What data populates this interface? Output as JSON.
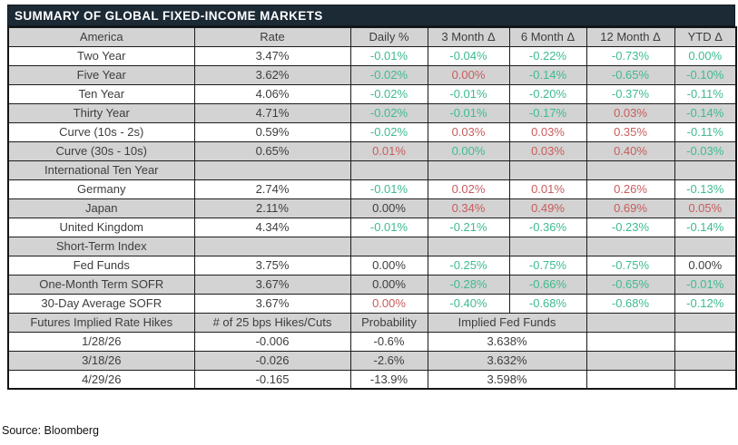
{
  "title": "SUMMARY OF GLOBAL FIXED-INCOME MARKETS",
  "source_note": "Source: Bloomberg",
  "colors": {
    "green": "#3ebc8e",
    "red": "#c95c5c",
    "dark": "#3d3d3d",
    "header_gray": "#d3d3d3",
    "title_bg": "#1c2a36",
    "title_text": "#ffffff"
  },
  "bond_table": {
    "header": {
      "label": "America",
      "cols": [
        "Rate",
        "Daily %",
        "3 Month Δ",
        "6 Month Δ",
        "12 Month Δ",
        "YTD Δ"
      ]
    },
    "rows": [
      {
        "type": "data",
        "label": "Two Year",
        "rate": "3.47%",
        "cells": [
          {
            "v": "-0.01%",
            "c": "green"
          },
          {
            "v": "-0.04%",
            "c": "green"
          },
          {
            "v": "-0.22%",
            "c": "green"
          },
          {
            "v": "-0.73%",
            "c": "green"
          },
          {
            "v": "0.00%",
            "c": "green"
          }
        ]
      },
      {
        "type": "data",
        "label": "Five Year",
        "rate": "3.62%",
        "cells": [
          {
            "v": "-0.02%",
            "c": "green"
          },
          {
            "v": "0.00%",
            "c": "red"
          },
          {
            "v": "-0.14%",
            "c": "green"
          },
          {
            "v": "-0.65%",
            "c": "green"
          },
          {
            "v": "-0.10%",
            "c": "green"
          }
        ]
      },
      {
        "type": "data",
        "label": "Ten Year",
        "rate": "4.06%",
        "cells": [
          {
            "v": "-0.02%",
            "c": "green"
          },
          {
            "v": "-0.01%",
            "c": "green"
          },
          {
            "v": "-0.20%",
            "c": "green"
          },
          {
            "v": "-0.37%",
            "c": "green"
          },
          {
            "v": "-0.11%",
            "c": "green"
          }
        ]
      },
      {
        "type": "data",
        "label": "Thirty Year",
        "rate": "4.71%",
        "cells": [
          {
            "v": "-0.02%",
            "c": "green"
          },
          {
            "v": "-0.01%",
            "c": "green"
          },
          {
            "v": "-0.17%",
            "c": "green"
          },
          {
            "v": "0.03%",
            "c": "red"
          },
          {
            "v": "-0.14%",
            "c": "green"
          }
        ]
      },
      {
        "type": "data",
        "label": "Curve (10s - 2s)",
        "rate": "0.59%",
        "cells": [
          {
            "v": "-0.02%",
            "c": "green"
          },
          {
            "v": "0.03%",
            "c": "red"
          },
          {
            "v": "0.03%",
            "c": "red"
          },
          {
            "v": "0.35%",
            "c": "red"
          },
          {
            "v": "-0.11%",
            "c": "green"
          }
        ]
      },
      {
        "type": "data",
        "label": "Curve (30s - 10s)",
        "rate": "0.65%",
        "cells": [
          {
            "v": "0.01%",
            "c": "red"
          },
          {
            "v": "0.00%",
            "c": "green"
          },
          {
            "v": "0.03%",
            "c": "red"
          },
          {
            "v": "0.40%",
            "c": "red"
          },
          {
            "v": "-0.03%",
            "c": "green"
          }
        ]
      },
      {
        "type": "section",
        "label": "International Ten Year"
      },
      {
        "type": "data",
        "label": "Germany",
        "rate": "2.74%",
        "cells": [
          {
            "v": "-0.01%",
            "c": "green"
          },
          {
            "v": "0.02%",
            "c": "red"
          },
          {
            "v": "0.01%",
            "c": "red"
          },
          {
            "v": "0.26%",
            "c": "red"
          },
          {
            "v": "-0.13%",
            "c": "green"
          }
        ]
      },
      {
        "type": "data",
        "label": "Japan",
        "rate": "2.11%",
        "cells": [
          {
            "v": "0.00%",
            "c": "dark"
          },
          {
            "v": "0.34%",
            "c": "red"
          },
          {
            "v": "0.49%",
            "c": "red"
          },
          {
            "v": "0.69%",
            "c": "red"
          },
          {
            "v": "0.05%",
            "c": "red"
          }
        ]
      },
      {
        "type": "data",
        "label": "United Kingdom",
        "rate": "4.34%",
        "cells": [
          {
            "v": "-0.01%",
            "c": "green"
          },
          {
            "v": "-0.21%",
            "c": "green"
          },
          {
            "v": "-0.36%",
            "c": "green"
          },
          {
            "v": "-0.23%",
            "c": "green"
          },
          {
            "v": "-0.14%",
            "c": "green"
          }
        ]
      },
      {
        "type": "section",
        "label": "Short-Term Index"
      },
      {
        "type": "data",
        "label": "Fed Funds",
        "rate": "3.75%",
        "cells": [
          {
            "v": "0.00%",
            "c": "dark"
          },
          {
            "v": "-0.25%",
            "c": "green"
          },
          {
            "v": "-0.75%",
            "c": "green"
          },
          {
            "v": "-0.75%",
            "c": "green"
          },
          {
            "v": "0.00%",
            "c": "dark"
          }
        ]
      },
      {
        "type": "data",
        "label": "One-Month Term SOFR",
        "rate": "3.67%",
        "cells": [
          {
            "v": "0.00%",
            "c": "dark"
          },
          {
            "v": "-0.28%",
            "c": "green"
          },
          {
            "v": "-0.66%",
            "c": "green"
          },
          {
            "v": "-0.65%",
            "c": "green"
          },
          {
            "v": "-0.01%",
            "c": "green"
          }
        ]
      },
      {
        "type": "data",
        "label": "30-Day Average SOFR",
        "rate": "3.67%",
        "cells": [
          {
            "v": "0.00%",
            "c": "red"
          },
          {
            "v": "-0.40%",
            "c": "green"
          },
          {
            "v": "-0.68%",
            "c": "green"
          },
          {
            "v": "-0.68%",
            "c": "green"
          },
          {
            "v": "-0.12%",
            "c": "green"
          }
        ]
      }
    ]
  },
  "futures_table": {
    "header": [
      "Futures Implied Rate Hikes",
      "# of 25 bps Hikes/Cuts",
      "Probability",
      "Implied Fed Funds"
    ],
    "rows": [
      {
        "date": "1/28/26",
        "hikes_cuts": "-0.006",
        "probability": "-0.6%",
        "implied_fed_funds": "3.638%"
      },
      {
        "date": "3/18/26",
        "hikes_cuts": "-0.026",
        "probability": "-2.6%",
        "implied_fed_funds": "3.632%"
      },
      {
        "date": "4/29/26",
        "hikes_cuts": "-0.165",
        "probability": "-13.9%",
        "implied_fed_funds": "3.598%"
      }
    ]
  }
}
